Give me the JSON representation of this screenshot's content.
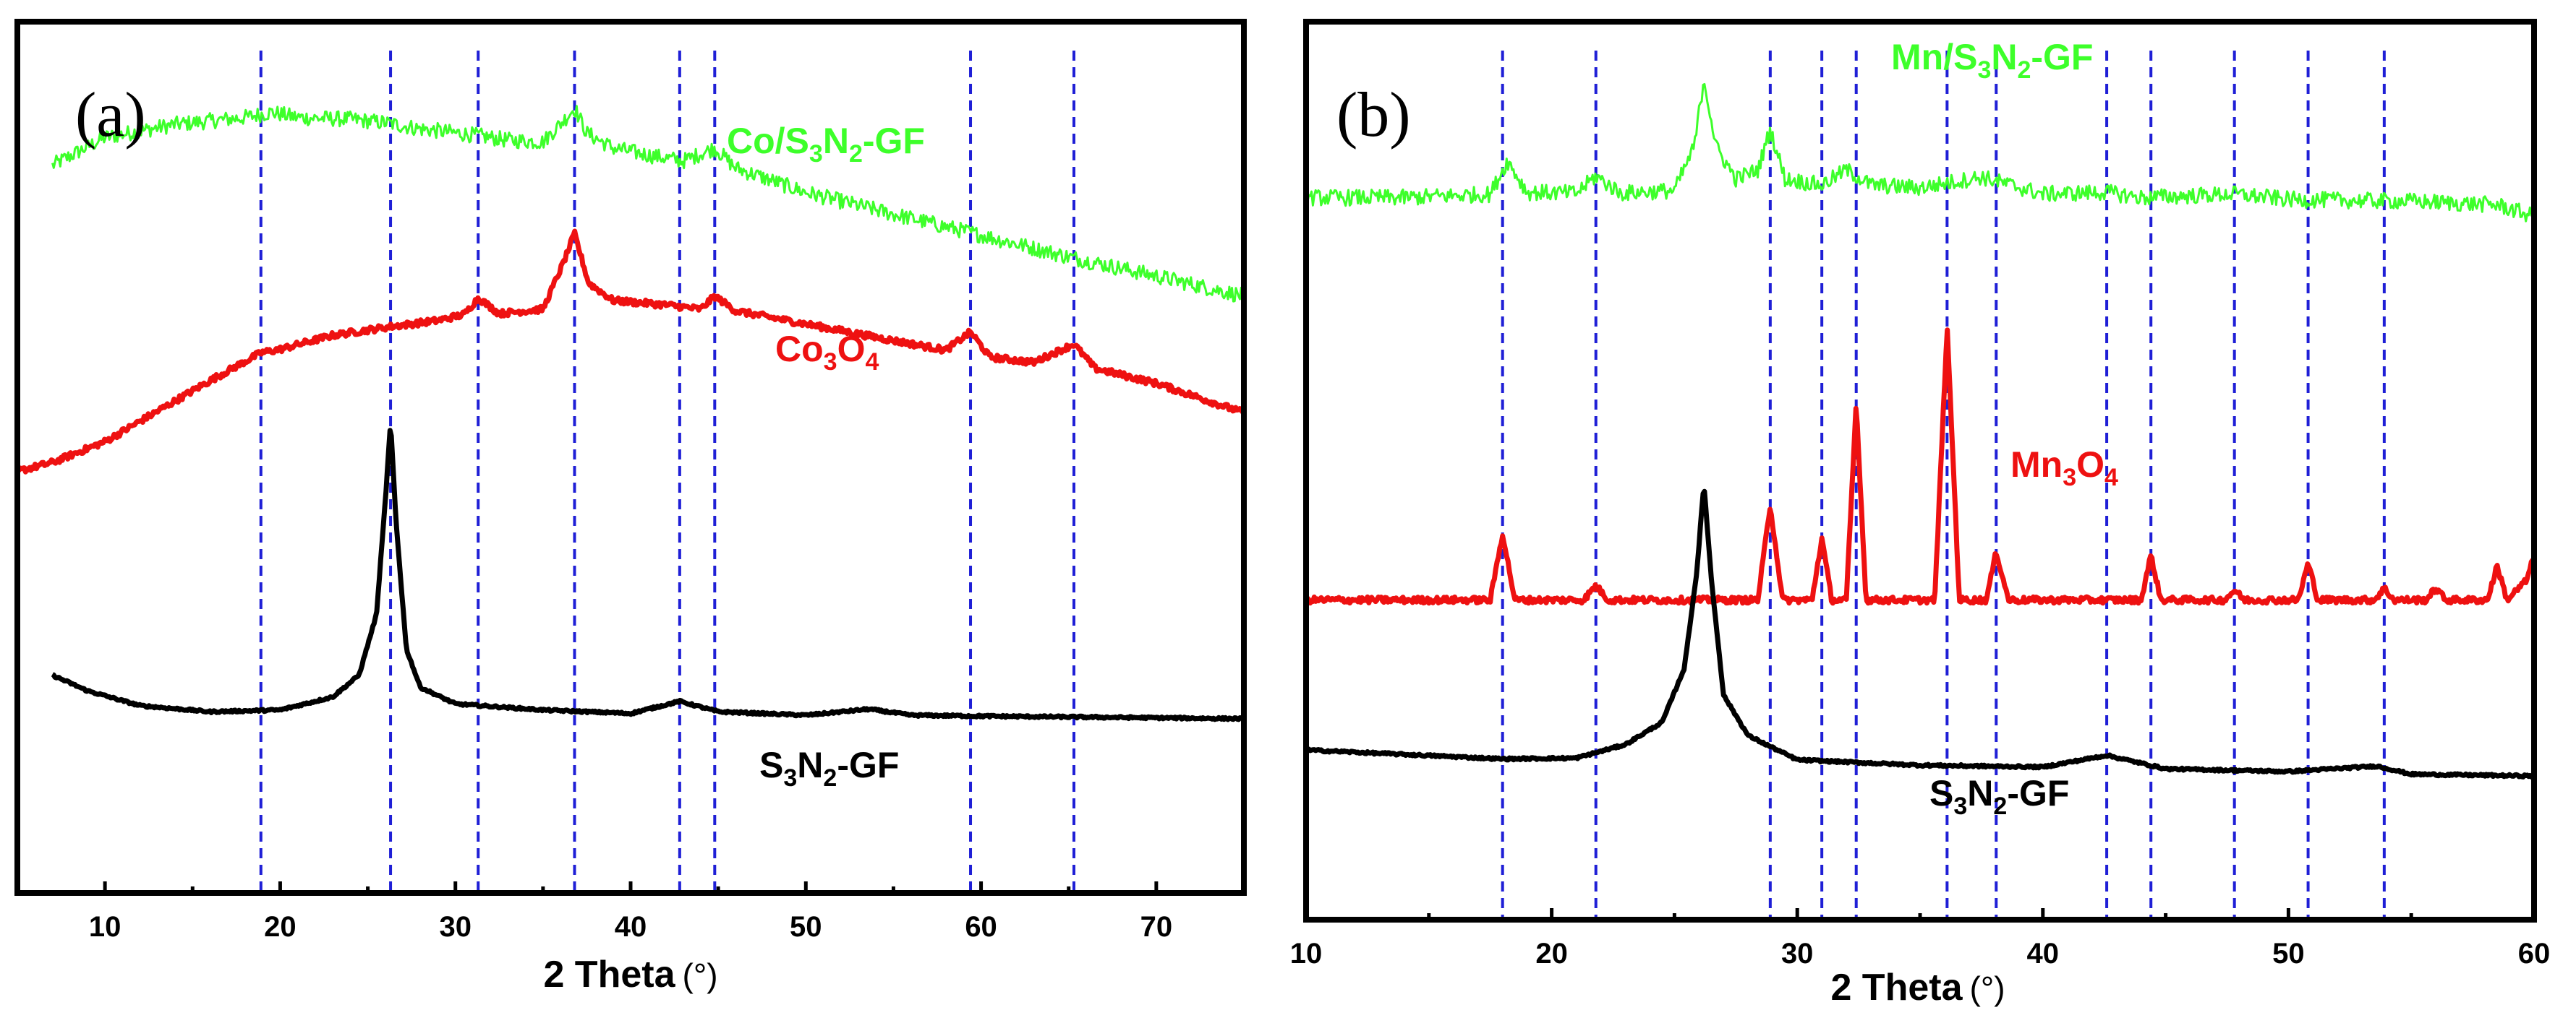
{
  "chart_data": [
    {
      "type": "line",
      "panel_label": "(a)",
      "xlabel": "2 Theta",
      "xlabel_unit": "(°)",
      "xlim": [
        5,
        75
      ],
      "x_ticks": [
        10,
        20,
        30,
        40,
        50,
        60,
        70
      ],
      "ylabel": "",
      "y_ticks_shown": false,
      "ylim": [
        0,
        100
      ],
      "reference_lines": {
        "color": "#1f1fd6",
        "style": "dashed",
        "x": [
          18.9,
          26.3,
          31.3,
          36.8,
          42.8,
          44.8,
          59.4,
          65.3
        ]
      },
      "series": [
        {
          "name": "Co/S3N2-GF",
          "label_parts": [
            "Co/S",
            "3",
            "N",
            "2",
            "-GF"
          ],
          "color": "#3dff2a",
          "x": [
            7,
            10,
            14,
            18,
            19.5,
            21,
            24,
            26,
            28,
            31,
            33,
            35,
            36.2,
            36.8,
            37.5,
            39,
            41,
            43,
            44.8,
            46,
            50,
            55,
            60,
            65,
            70,
            75
          ],
          "values": [
            83.5,
            86.7,
            88.2,
            89.0,
            89.6,
            89.0,
            88.8,
            88.4,
            87.7,
            87.0,
            86.4,
            86.2,
            88.7,
            90.1,
            87.2,
            85.5,
            84.7,
            84.0,
            85.5,
            83.2,
            80.4,
            77.9,
            75.5,
            73.0,
            70.8,
            68.5
          ]
        },
        {
          "name": "Co3O4",
          "label_parts": [
            "Co",
            "3",
            "O",
            "4"
          ],
          "color": "#ee1111",
          "x": [
            5,
            7,
            10,
            13,
            16,
            18.9,
            20,
            23,
            26.3,
            29,
            30.5,
            31.3,
            32.5,
            35,
            36.2,
            36.8,
            37.6,
            39,
            42,
            44,
            44.8,
            46,
            50,
            55,
            58,
            59.4,
            60.5,
            63,
            65.3,
            66.5,
            70,
            75
          ],
          "values": [
            48.4,
            49.4,
            51.8,
            55.3,
            58.8,
            62.0,
            62.4,
            64.0,
            65.0,
            65.7,
            66.4,
            68.3,
            66.5,
            67.0,
            72.5,
            75.7,
            70.0,
            68.0,
            67.5,
            67.0,
            68.5,
            66.8,
            65.3,
            63.4,
            62.3,
            64.4,
            61.5,
            60.9,
            63.0,
            60.2,
            58.5,
            55.1
          ]
        },
        {
          "name": "S3N2-GF",
          "label_parts": [
            "S",
            "3",
            "N",
            "2",
            "-GF"
          ],
          "color": "#000000",
          "x": [
            7,
            9,
            12,
            16,
            20,
            23,
            24.5,
            25.5,
            26.0,
            26.3,
            26.6,
            27.2,
            28,
            30,
            35,
            40,
            42.8,
            45,
            50,
            53.6,
            56,
            60,
            65,
            70,
            75
          ],
          "values": [
            25.0,
            23.2,
            21.5,
            20.8,
            21.0,
            22.5,
            25.0,
            32.0,
            45.0,
            54.0,
            43.0,
            28.0,
            23.6,
            21.7,
            21.0,
            20.6,
            22.0,
            20.8,
            20.4,
            21.1,
            20.4,
            20.3,
            20.2,
            20.1,
            20.0
          ]
        }
      ]
    },
    {
      "type": "line",
      "panel_label": "(b)",
      "xlabel": "2 Theta",
      "xlabel_unit": "(°)",
      "xlim": [
        10,
        60
      ],
      "x_ticks": [
        10,
        20,
        30,
        40,
        50,
        60
      ],
      "ylabel": "",
      "y_ticks_shown": false,
      "ylim": [
        0,
        100
      ],
      "reference_lines": {
        "color": "#1f1fd6",
        "style": "dashed",
        "x": [
          18.0,
          21.8,
          28.9,
          31.0,
          32.4,
          36.1,
          38.1,
          42.6,
          44.4,
          47.8,
          50.8,
          53.9
        ]
      },
      "series": [
        {
          "name": "Mn/S3N2-GF",
          "label_parts": [
            "Mn/S",
            "3",
            "N",
            "2",
            "-GF"
          ],
          "color": "#3dff2a",
          "x": [
            10,
            14,
            17.5,
            18.2,
            19,
            21,
            21.8,
            22.8,
            25,
            25.8,
            26.2,
            26.7,
            27.5,
            28.4,
            28.9,
            29.5,
            31,
            32,
            33,
            35,
            37.5,
            40,
            42.6,
            44,
            47.8,
            50,
            55,
            58.5,
            60
          ],
          "values": [
            80.4,
            80.4,
            80.8,
            84.5,
            81.0,
            80.9,
            82.8,
            80.9,
            81.2,
            86.0,
            93.7,
            86.0,
            82.5,
            83.5,
            88.0,
            82.5,
            81.8,
            83.5,
            81.8,
            81.5,
            82.7,
            80.8,
            81.0,
            80.4,
            80.8,
            80.2,
            80.0,
            79.6,
            78.3
          ]
        },
        {
          "name": "Mn3O4",
          "label_parts": [
            "Mn",
            "3",
            "O",
            "4"
          ],
          "color": "#ee1111",
          "x": [
            10,
            17.5,
            18.0,
            18.5,
            21.3,
            21.8,
            22.3,
            28.4,
            28.9,
            29.4,
            30.6,
            31.0,
            31.4,
            32.0,
            32.4,
            32.8,
            35.6,
            36.1,
            36.6,
            37.7,
            38.1,
            38.6,
            44.0,
            44.4,
            44.8,
            47.4,
            47.8,
            48.2,
            50.4,
            50.8,
            51.2,
            53.5,
            53.9,
            54.3,
            55.6,
            56.0,
            56.4,
            58.1,
            58.5,
            58.9,
            59.7,
            60
          ],
          "values": [
            35.6,
            35.6,
            43.0,
            35.6,
            35.6,
            37.2,
            35.6,
            35.6,
            46.2,
            35.6,
            35.6,
            42.5,
            35.6,
            35.6,
            57.5,
            35.6,
            35.6,
            66.0,
            35.6,
            35.6,
            41.0,
            35.6,
            35.6,
            40.6,
            35.6,
            35.6,
            36.7,
            35.6,
            35.6,
            39.7,
            35.6,
            35.6,
            36.9,
            35.6,
            35.6,
            36.9,
            35.6,
            35.6,
            39.4,
            35.6,
            37.8,
            40.5
          ]
        },
        {
          "name": "S3N2-GF",
          "label_parts": [
            "S",
            "3",
            "N",
            "2",
            "-GF"
          ],
          "color": "#000000",
          "x": [
            10,
            14,
            18,
            21,
            23,
            24.5,
            25.4,
            25.9,
            26.2,
            26.5,
            27.0,
            28,
            30,
            35,
            40,
            42.6,
            45,
            50,
            53.6,
            55,
            60
          ],
          "values": [
            18.9,
            18.4,
            17.9,
            18.0,
            19.5,
            22.0,
            28.0,
            38.5,
            48.5,
            38.0,
            25.0,
            20.5,
            17.8,
            17.2,
            17.0,
            18.3,
            16.8,
            16.5,
            17.1,
            16.2,
            16.0
          ]
        }
      ]
    }
  ]
}
